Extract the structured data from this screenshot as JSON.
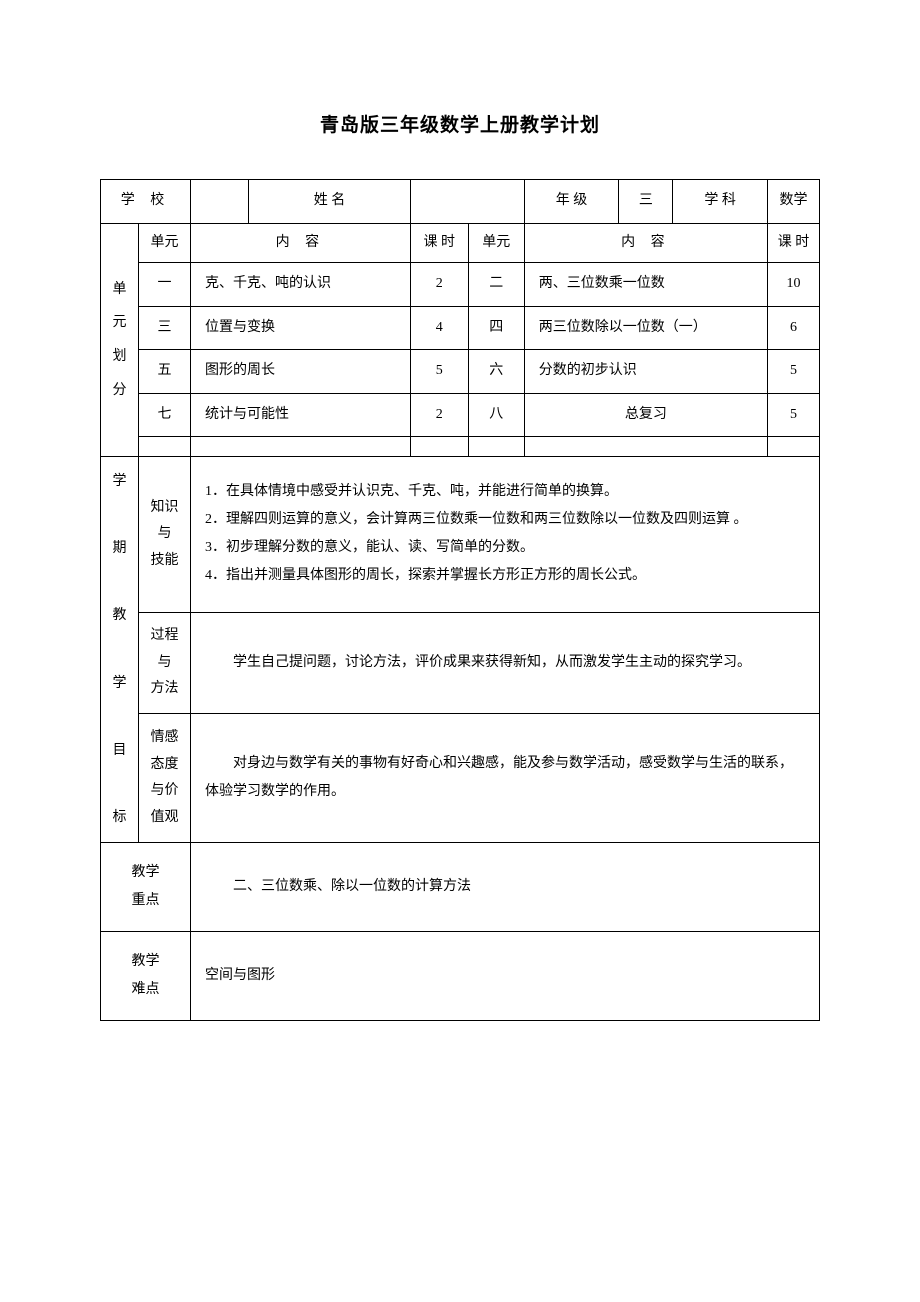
{
  "title": "青岛版三年级数学上册教学计划",
  "header": {
    "schoolLabel": "学 校",
    "schoolValue": "",
    "nameLabel": "姓 名",
    "nameValue": "",
    "gradeLabel": "年 级",
    "gradeValue": "三",
    "subjectLabel": "学 科",
    "subjectValue": "数学"
  },
  "unitSection": {
    "label": "单元划分",
    "headers": {
      "unit": "单元",
      "content": "内 容",
      "hours": "课 时"
    },
    "rows": [
      {
        "unitA": "一",
        "contentA": "克、千克、吨的认识",
        "hoursA": "2",
        "unitB": "二",
        "contentB": "两、三位数乘一位数",
        "hoursB": "10"
      },
      {
        "unitA": "三",
        "contentA": "位置与变换",
        "hoursA": "4",
        "unitB": "四",
        "contentB": "两三位数除以一位数（一）",
        "hoursB": "6"
      },
      {
        "unitA": "五",
        "contentA": "图形的周长",
        "hoursA": "5",
        "unitB": "六",
        "contentB": "分数的初步认识",
        "hoursB": "5"
      },
      {
        "unitA": "七",
        "contentA": "统计与可能性",
        "hoursA": "2",
        "unitB": "八",
        "contentB": "总复习",
        "hoursB": "5"
      }
    ]
  },
  "objectives": {
    "label": "学期教学目标",
    "knowledge": {
      "label": "知识与技能",
      "content": "1．在具体情境中感受并认识克、千克、吨，并能进行简单的换算。\n2．理解四则运算的意义，会计算两三位数乘一位数和两三位数除以一位数及四则运算 。\n3．初步理解分数的意义，能认、读、写简单的分数。\n4．指出并测量具体图形的周长，探索并掌握长方形正方形的周长公式。"
    },
    "process": {
      "label": "过程与方法",
      "content": "学生自己提问题，讨论方法，评价成果来获得新知，从而激发学生主动的探究学习。"
    },
    "attitude": {
      "label": "情感态度与价值观",
      "content": "对身边与数学有关的事物有好奇心和兴趣感，能及参与数学活动，感受数学与生活的联系，体验学习数学的作用。"
    }
  },
  "keyPoints": {
    "label": "教学重点",
    "content": "二、三位数乘、除以一位数的计算方法"
  },
  "difficulties": {
    "label": "教学难点",
    "content": "空间与图形"
  },
  "styles": {
    "backgroundColor": "#ffffff",
    "borderColor": "#000000",
    "textColor": "#000000",
    "titleFontSize": 19,
    "bodyFontSize": 14,
    "pageWidth": 920,
    "pageHeight": 1302
  }
}
